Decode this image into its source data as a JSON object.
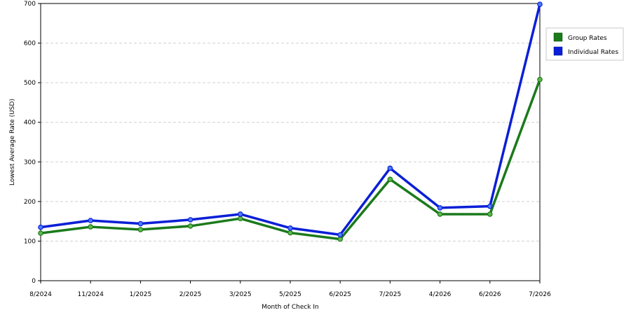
{
  "chart_data": {
    "type": "line",
    "xlabel": "Month of Check In",
    "ylabel": "Lowest Average Rate (USD)",
    "categories": [
      "8/2024",
      "11/2024",
      "1/2025",
      "2/2025",
      "3/2025",
      "5/2025",
      "6/2025",
      "7/2025",
      "4/2026",
      "6/2026",
      "7/2026"
    ],
    "ylim": [
      0,
      700
    ],
    "yticks": [
      0,
      100,
      200,
      300,
      400,
      500,
      600,
      700
    ],
    "grid": true,
    "legend_position": "top-right",
    "series": [
      {
        "name": "Group Rates",
        "color": "#1b7a1b",
        "values": [
          120,
          136,
          129,
          138,
          157,
          121,
          105,
          256,
          168,
          168,
          508
        ]
      },
      {
        "name": "Individual Rates",
        "color": "#0a1fd6",
        "values": [
          135,
          152,
          144,
          154,
          168,
          133,
          116,
          284,
          184,
          188,
          698
        ]
      }
    ]
  }
}
